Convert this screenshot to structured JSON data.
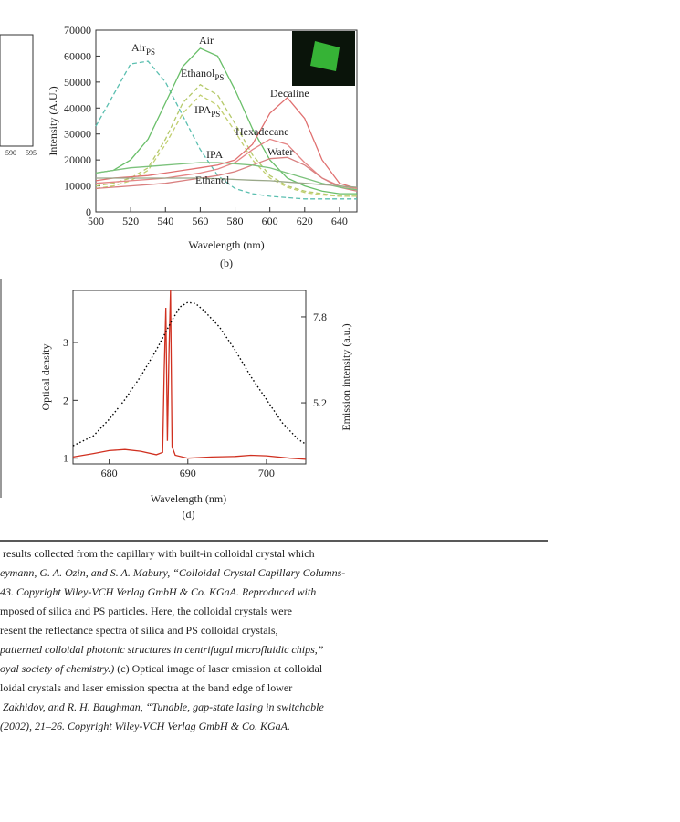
{
  "fragments": [
    "590",
    "595"
  ],
  "chart_data": [
    {
      "type": "line",
      "caption": "(b)",
      "xlabel": "Wavelength (nm)",
      "ylabel": "Intensity (A.U.)",
      "xlim": [
        500,
        650
      ],
      "xticks": [
        500,
        520,
        540,
        560,
        580,
        600,
        620,
        640
      ],
      "ylim": [
        0,
        70000
      ],
      "yticks": [
        0,
        10000,
        20000,
        30000,
        40000,
        50000,
        60000,
        70000
      ],
      "x": [
        500,
        510,
        520,
        530,
        540,
        550,
        560,
        570,
        580,
        590,
        600,
        610,
        620,
        630,
        640,
        650
      ],
      "series": [
        {
          "name": "Air",
          "sub": "PS",
          "color": "#5bbfb0",
          "dashed": true,
          "values": [
            33000,
            45000,
            57000,
            58000,
            50000,
            37000,
            24000,
            14000,
            9000,
            7000,
            6000,
            5500,
            5000,
            5000,
            5000,
            5000
          ]
        },
        {
          "name": "Air",
          "color": "#6abf6a",
          "dashed": false,
          "values": [
            15000,
            16000,
            20000,
            28000,
            42000,
            56000,
            63000,
            60000,
            47000,
            32000,
            20000,
            13000,
            10000,
            8000,
            7000,
            7000
          ]
        },
        {
          "name": "Ethanol",
          "sub": "PS",
          "color": "#b5c96a",
          "dashed": true,
          "values": [
            10000,
            11000,
            13000,
            17000,
            28000,
            42000,
            49000,
            45000,
            34000,
            22000,
            14000,
            10000,
            8000,
            7000,
            6000,
            6000
          ]
        },
        {
          "name": "IPA",
          "sub": "PS",
          "color": "#c2cf70",
          "dashed": true,
          "values": [
            9000,
            10000,
            12000,
            16000,
            26000,
            38000,
            45000,
            41000,
            31000,
            20000,
            13000,
            9500,
            7500,
            6500,
            6000,
            6000
          ]
        },
        {
          "name": "Decaline",
          "color": "#e07070",
          "dashed": false,
          "values": [
            12000,
            13000,
            13500,
            14000,
            15000,
            16000,
            17000,
            18000,
            20000,
            26000,
            38000,
            44000,
            36000,
            20000,
            11000,
            9000
          ]
        },
        {
          "name": "Hexadecane",
          "color": "#e58585",
          "dashed": false,
          "values": [
            11000,
            11500,
            12000,
            12500,
            13000,
            14000,
            15000,
            16500,
            19000,
            24000,
            28000,
            26000,
            19000,
            13000,
            10000,
            9000
          ]
        },
        {
          "name": "Water",
          "color": "#d98080",
          "dashed": false,
          "values": [
            9000,
            9500,
            10000,
            10500,
            11000,
            12000,
            13000,
            14000,
            15500,
            18000,
            20500,
            21000,
            18000,
            13000,
            9500,
            8000
          ]
        },
        {
          "name": "IPA",
          "color": "#7cc27c",
          "dashed": false,
          "values": [
            15000,
            16000,
            17000,
            17500,
            18000,
            18500,
            19000,
            19000,
            18500,
            18000,
            17000,
            15000,
            13000,
            11000,
            9500,
            8500
          ]
        },
        {
          "name": "Ethanol",
          "color": "#9aa88a",
          "dashed": false,
          "values": [
            13000,
            13000,
            13000,
            13000,
            13000,
            13000,
            13000,
            12800,
            12500,
            12200,
            12000,
            11500,
            11000,
            10500,
            10000,
            9500
          ]
        }
      ]
    },
    {
      "type": "dual-line",
      "caption": "(d)",
      "xlabel": "Wavelength (nm)",
      "ylabel": "Optical density",
      "y2label": "Emission intensity (a.u.)",
      "xlim": [
        675.4,
        705
      ],
      "xticks": [
        680,
        690,
        700
      ],
      "ylim": [
        0.9,
        3.9
      ],
      "yticks": [
        1,
        2,
        3
      ],
      "y2lim": [
        3.35,
        8.6
      ],
      "y2ticks": [
        5.2,
        7.8
      ],
      "series": [
        {
          "color": "#d03020",
          "dotted": false,
          "axis": "y",
          "x": [
            675.4,
            678,
            680,
            682,
            684,
            686,
            686.8,
            687.0,
            687.2,
            687.4,
            687.6,
            687.8,
            688.0,
            688.4,
            690,
            693,
            696,
            698,
            700,
            703,
            705
          ],
          "values": [
            1.02,
            1.08,
            1.13,
            1.15,
            1.12,
            1.06,
            1.1,
            2.5,
            3.6,
            1.3,
            2.8,
            3.9,
            1.2,
            1.05,
            1.0,
            1.02,
            1.03,
            1.05,
            1.04,
            1.0,
            0.98
          ]
        },
        {
          "color": "#000000",
          "dotted": true,
          "axis": "y2",
          "x": [
            675.4,
            678,
            680,
            682,
            684,
            686,
            688,
            689,
            690,
            691,
            692,
            694,
            696,
            698,
            700,
            702,
            704,
            705
          ],
          "values": [
            3.9,
            4.2,
            4.7,
            5.3,
            6.0,
            6.8,
            7.7,
            8.1,
            8.24,
            8.2,
            8.0,
            7.5,
            6.8,
            6.0,
            5.3,
            4.6,
            4.1,
            3.95
          ]
        }
      ]
    }
  ],
  "caption": [
    [
      {
        "text": " results collected from the capillary with built-in colloidal crystal which",
        "italic": false
      }
    ],
    [
      {
        "text": "eymann, G. A. Ozin, and S. A. Mabury, “Colloidal Crystal Capillary Columns-",
        "italic": true
      }
    ],
    [
      {
        "text": "43. Copyright Wiley-VCH Verlag GmbH & Co. KGaA. Reproduced with",
        "italic": true
      }
    ],
    [
      {
        "text": "mposed of silica and PS particles. Here, the colloidal crystals were",
        "italic": false
      }
    ],
    [
      {
        "text": "resent the reflectance spectra of silica and PS colloidal crystals,",
        "italic": false
      }
    ],
    [
      {
        "text": "patterned colloidal photonic structures in centrifugal microfluidic chips,”",
        "italic": true
      }
    ],
    [
      {
        "text": "oyal society of chemistry.)",
        "italic": true
      },
      {
        "text": " (c) Optical image of laser emission at colloidal",
        "italic": false
      }
    ],
    [
      {
        "text": "loidal crystals and laser emission spectra at the band edge of lower",
        "italic": false
      }
    ],
    [
      {
        "text": " Zakhidov, and R. H. Baughman, “Tunable, gap-state lasing in switchable",
        "italic": true
      }
    ],
    [
      {
        "text": "(2002), 21–26. Copyright Wiley-VCH Verlag GmbH & Co. KGaA.",
        "italic": true
      }
    ]
  ]
}
